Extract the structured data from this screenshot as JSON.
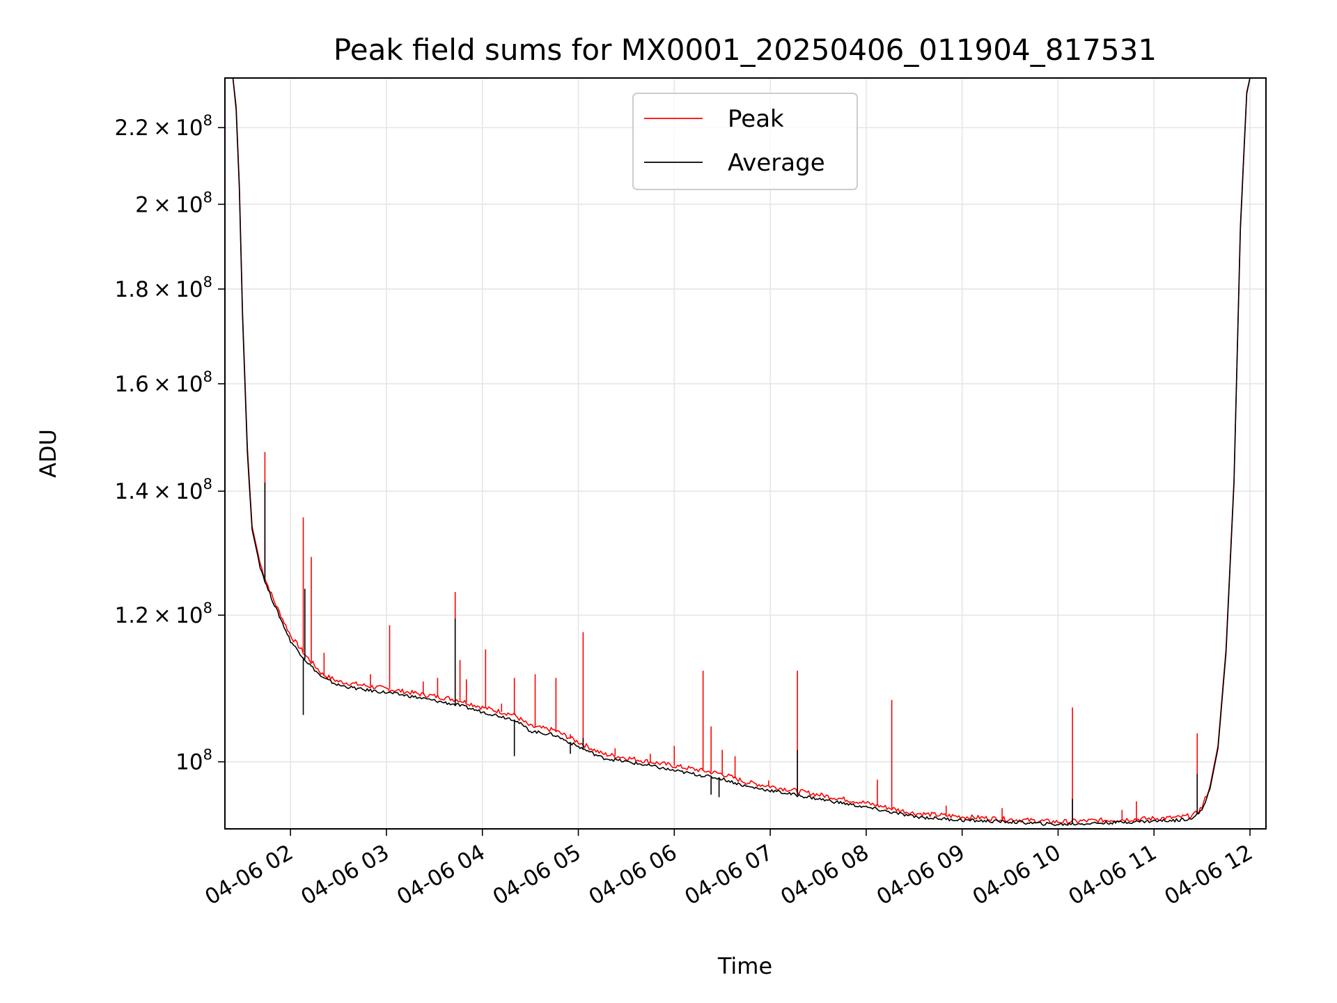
{
  "chart_data": {
    "type": "line",
    "title": "Peak field sums for MX0001_20250406_011904_817531",
    "xlabel": "Time",
    "ylabel": "ADU",
    "x_range": [
      "2025-04-06 01:19",
      "2025-04-06 12:10"
    ],
    "ylim": [
      92000000,
      234000000
    ],
    "y_scale": "log",
    "grid": true,
    "legend_position": "upper center",
    "x_ticks": [
      {
        "value": "2025-04-06 02:00",
        "label": "04-06 02"
      },
      {
        "value": "2025-04-06 03:00",
        "label": "04-06 03"
      },
      {
        "value": "2025-04-06 04:00",
        "label": "04-06 04"
      },
      {
        "value": "2025-04-06 05:00",
        "label": "04-06 05"
      },
      {
        "value": "2025-04-06 06:00",
        "label": "04-06 06"
      },
      {
        "value": "2025-04-06 07:00",
        "label": "04-06 07"
      },
      {
        "value": "2025-04-06 08:00",
        "label": "04-06 08"
      },
      {
        "value": "2025-04-06 09:00",
        "label": "04-06 09"
      },
      {
        "value": "2025-04-06 10:00",
        "label": "04-06 10"
      },
      {
        "value": "2025-04-06 11:00",
        "label": "04-06 11"
      },
      {
        "value": "2025-04-06 12:00",
        "label": "04-06 12"
      }
    ],
    "y_ticks": [
      {
        "value": 100000000,
        "mantissa": "",
        "exponent": "8"
      },
      {
        "value": 120000000,
        "mantissa": "1.2",
        "exponent": "8"
      },
      {
        "value": 140000000,
        "mantissa": "1.4",
        "exponent": "8"
      },
      {
        "value": 160000000,
        "mantissa": "1.6",
        "exponent": "8"
      },
      {
        "value": 180000000,
        "mantissa": "1.8",
        "exponent": "8"
      },
      {
        "value": 200000000,
        "mantissa": "2",
        "exponent": "8"
      },
      {
        "value": 220000000,
        "mantissa": "2.2",
        "exponent": "8"
      }
    ],
    "series": [
      {
        "name": "Peak",
        "color": "#ff0000",
        "x": [
          "2025-04-06 01:19",
          "2025-04-06 01:24",
          "2025-04-06 01:26",
          "2025-04-06 01:28",
          "2025-04-06 01:30",
          "2025-04-06 01:33",
          "2025-04-06 01:36",
          "2025-04-06 01:41",
          "2025-04-06 01:45",
          "2025-04-06 01:50",
          "2025-04-06 02:00",
          "2025-04-06 02:10",
          "2025-04-06 02:20",
          "2025-04-06 02:30",
          "2025-04-06 02:45",
          "2025-04-06 03:00",
          "2025-04-06 03:15",
          "2025-04-06 03:30",
          "2025-04-06 03:45",
          "2025-04-06 04:00",
          "2025-04-06 04:20",
          "2025-04-06 04:30",
          "2025-04-06 04:45",
          "2025-04-06 05:00",
          "2025-04-06 05:15",
          "2025-04-06 05:30",
          "2025-04-06 05:45",
          "2025-04-06 06:00",
          "2025-04-06 06:30",
          "2025-04-06 06:45",
          "2025-04-06 07:00",
          "2025-04-06 07:15",
          "2025-04-06 07:30",
          "2025-04-06 07:45",
          "2025-04-06 08:00",
          "2025-04-06 08:30",
          "2025-04-06 09:00",
          "2025-04-06 09:30",
          "2025-04-06 10:00",
          "2025-04-06 10:30",
          "2025-04-06 11:00",
          "2025-04-06 11:15",
          "2025-04-06 11:25",
          "2025-04-06 11:30",
          "2025-04-06 11:35",
          "2025-04-06 11:40",
          "2025-04-06 11:45",
          "2025-04-06 11:50",
          "2025-04-06 11:54",
          "2025-04-06 11:58",
          "2025-04-06 12:00"
        ],
        "y": [
          234000000,
          234000000,
          226000000,
          205000000,
          175000000,
          148000000,
          134000000,
          128000000,
          125000000,
          122000000,
          117000000,
          114000000,
          111500000,
          110500000,
          110000000,
          109500000,
          109000000,
          108500000,
          108000000,
          107000000,
          106000000,
          104500000,
          104000000,
          102500000,
          101000000,
          100500000,
          100000000,
          99500000,
          98500000,
          97500000,
          97000000,
          96500000,
          96000000,
          95500000,
          95000000,
          93800000,
          93400000,
          93100000,
          92800000,
          93000000,
          93200000,
          93300000,
          93600000,
          94500000,
          97000000,
          102000000,
          115000000,
          142000000,
          195000000,
          230000000,
          234000000
        ],
        "spikes": [
          [
            "2025-04-06 01:44",
            147000000
          ],
          [
            "2025-04-06 02:08",
            135500000
          ],
          [
            "2025-04-06 02:13",
            129000000
          ],
          [
            "2025-04-06 02:21",
            114500000
          ],
          [
            "2025-04-06 02:50",
            111500000
          ],
          [
            "2025-04-06 03:02",
            118500000
          ],
          [
            "2025-04-06 03:23",
            110500000
          ],
          [
            "2025-04-06 03:32",
            111000000
          ],
          [
            "2025-04-06 03:43",
            123500000
          ],
          [
            "2025-04-06 03:46",
            113500000
          ],
          [
            "2025-04-06 03:50",
            110800000
          ],
          [
            "2025-04-06 04:02",
            115000000
          ],
          [
            "2025-04-06 04:12",
            107500000
          ],
          [
            "2025-04-06 04:20",
            111000000
          ],
          [
            "2025-04-06 04:33",
            111500000
          ],
          [
            "2025-04-06 04:46",
            111000000
          ],
          [
            "2025-04-06 04:55",
            103500000
          ],
          [
            "2025-04-06 05:03",
            117500000
          ],
          [
            "2025-04-06 05:23",
            101700000
          ],
          [
            "2025-04-06 05:45",
            101000000
          ],
          [
            "2025-04-06 06:00",
            102000000
          ],
          [
            "2025-04-06 06:18",
            112000000
          ],
          [
            "2025-04-06 06:23",
            104500000
          ],
          [
            "2025-04-06 06:30",
            101500000
          ],
          [
            "2025-04-06 06:38",
            100700000
          ],
          [
            "2025-04-06 06:59",
            97700000
          ],
          [
            "2025-04-06 07:17",
            112000000
          ],
          [
            "2025-04-06 08:07",
            97800000
          ],
          [
            "2025-04-06 08:16",
            108000000
          ],
          [
            "2025-04-06 08:50",
            94700000
          ],
          [
            "2025-04-06 09:25",
            94400000
          ],
          [
            "2025-04-06 10:09",
            107000000
          ],
          [
            "2025-04-06 10:40",
            94200000
          ],
          [
            "2025-04-06 10:49",
            95200000
          ],
          [
            "2025-04-06 11:27",
            103600000
          ]
        ]
      },
      {
        "name": "Average",
        "color": "#000000",
        "x": [
          "2025-04-06 01:19",
          "2025-04-06 01:24",
          "2025-04-06 01:26",
          "2025-04-06 01:28",
          "2025-04-06 01:30",
          "2025-04-06 01:33",
          "2025-04-06 01:36",
          "2025-04-06 01:41",
          "2025-04-06 01:45",
          "2025-04-06 01:50",
          "2025-04-06 02:00",
          "2025-04-06 02:10",
          "2025-04-06 02:20",
          "2025-04-06 02:30",
          "2025-04-06 02:45",
          "2025-04-06 03:00",
          "2025-04-06 03:15",
          "2025-04-06 03:30",
          "2025-04-06 03:45",
          "2025-04-06 04:00",
          "2025-04-06 04:20",
          "2025-04-06 04:30",
          "2025-04-06 04:45",
          "2025-04-06 05:00",
          "2025-04-06 05:15",
          "2025-04-06 05:30",
          "2025-04-06 05:45",
          "2025-04-06 06:00",
          "2025-04-06 06:30",
          "2025-04-06 06:45",
          "2025-04-06 07:00",
          "2025-04-06 07:15",
          "2025-04-06 07:30",
          "2025-04-06 07:45",
          "2025-04-06 08:00",
          "2025-04-06 08:30",
          "2025-04-06 09:00",
          "2025-04-06 09:30",
          "2025-04-06 10:00",
          "2025-04-06 10:30",
          "2025-04-06 11:00",
          "2025-04-06 11:15",
          "2025-04-06 11:25",
          "2025-04-06 11:30",
          "2025-04-06 11:35",
          "2025-04-06 11:40",
          "2025-04-06 11:45",
          "2025-04-06 11:50",
          "2025-04-06 11:54",
          "2025-04-06 11:58",
          "2025-04-06 12:00"
        ],
        "y": [
          234000000,
          234000000,
          225000000,
          204000000,
          174000000,
          147000000,
          133500000,
          127500000,
          124500000,
          121500000,
          116200000,
          113300000,
          111000000,
          110000000,
          109400000,
          109000000,
          108500000,
          107900000,
          107300000,
          106400000,
          105400000,
          103900000,
          103400000,
          101900000,
          100500000,
          100000000,
          99500000,
          98900000,
          97900000,
          97000000,
          96500000,
          96000000,
          95500000,
          95000000,
          94500000,
          93400000,
          93000000,
          92800000,
          92500000,
          92700000,
          92900000,
          93000000,
          93300000,
          94200000,
          96700000,
          101700000,
          114500000,
          141500000,
          194000000,
          229500000,
          234000000
        ],
        "spikes": [
          [
            "2025-04-06 01:44",
            141500000
          ],
          [
            "2025-04-06 02:08",
            106000000
          ],
          [
            "2025-04-06 02:09",
            124000000
          ],
          [
            "2025-04-06 03:43",
            119500000
          ],
          [
            "2025-04-06 04:20",
            100700000
          ],
          [
            "2025-04-06 04:55",
            101000000
          ],
          [
            "2025-04-06 05:03",
            103000000
          ],
          [
            "2025-04-06 06:23",
            96000000
          ],
          [
            "2025-04-06 06:28",
            95700000
          ],
          [
            "2025-04-06 07:17",
            101500000
          ],
          [
            "2025-04-06 10:09",
            95500000
          ],
          [
            "2025-04-06 11:27",
            98500000
          ]
        ]
      }
    ]
  }
}
